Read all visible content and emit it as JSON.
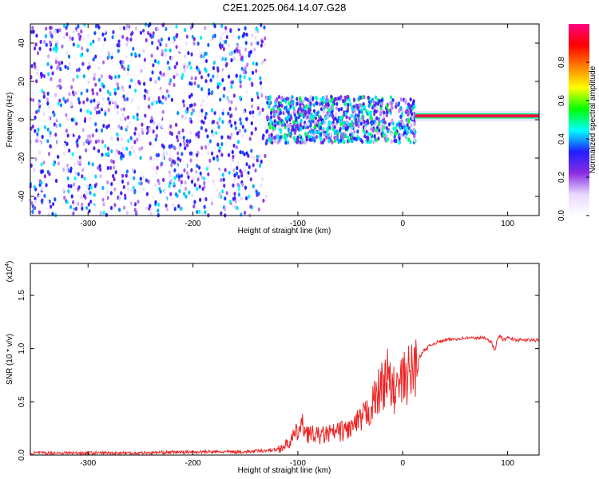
{
  "figure_title": "C2E1.2025.064.14.07.G28",
  "chart_data": [
    {
      "type": "heatmap",
      "xlabel": "Height of straight line (km)",
      "ylabel": "Frequency (Hz)",
      "xlim": [
        -355,
        130
      ],
      "ylim": [
        -50,
        50
      ],
      "xticks": [
        -300,
        -200,
        -100,
        0,
        100
      ],
      "yticks": [
        -40,
        -20,
        0,
        20,
        40
      ],
      "colorbar": {
        "label": "Normalized spectral amplitude",
        "range": [
          0,
          1
        ],
        "ticks": [
          0.0,
          0.2,
          0.4,
          0.6,
          0.8
        ],
        "tick_labels": [
          "0.0",
          "0.2",
          "0.4",
          "0.6",
          "0.8"
        ],
        "colormap": [
          "#ffffff",
          "#e8d8ff",
          "#8a2be2",
          "#1f1fff",
          "#00ffff",
          "#00ff00",
          "#ffff00",
          "#ff8000",
          "#ff0000",
          "#ff0080"
        ]
      },
      "regions": [
        {
          "x_range": [
            -355,
            -130
          ],
          "freq_range": [
            -50,
            50
          ],
          "amplitude": 0.05
        },
        {
          "x_range": [
            -130,
            12
          ],
          "freq_range": [
            -12,
            12
          ],
          "amplitude": 0.25
        },
        {
          "x_range": [
            12,
            130
          ],
          "freq_range": [
            1,
            3
          ],
          "amplitude": 0.95
        }
      ]
    },
    {
      "type": "line",
      "xlabel": "Height of straight line (km)",
      "ylabel": "SNR (10 * v/v)",
      "y_scale_label": "(x10",
      "y_scale_exponent": "4",
      "y_scale_close": ")",
      "xlim": [
        -355,
        130
      ],
      "ylim": [
        0,
        1.8
      ],
      "xticks": [
        -300,
        -200,
        -100,
        0,
        100
      ],
      "yticks": [
        0.0,
        0.5,
        1.0,
        1.5
      ],
      "ytick_labels": [
        "0.0",
        "0.5",
        "1.0",
        "1.5"
      ],
      "series_color": "#ee2222",
      "series": [
        {
          "x": [
            -355,
            -300,
            -250,
            -200,
            -150,
            -120,
            -110,
            -100,
            -95,
            -90,
            -80,
            -70,
            -60,
            -50,
            -40,
            -30,
            -25,
            -20,
            -15,
            -10,
            -5,
            0,
            5,
            10,
            15,
            20,
            25,
            30,
            40,
            60,
            80,
            85,
            88,
            90,
            92,
            94,
            96,
            100,
            110,
            120,
            130
          ],
          "y": [
            0.02,
            0.02,
            0.02,
            0.03,
            0.03,
            0.05,
            0.1,
            0.22,
            0.28,
            0.2,
            0.18,
            0.2,
            0.22,
            0.25,
            0.32,
            0.45,
            0.55,
            0.65,
            0.75,
            0.6,
            0.62,
            0.7,
            0.75,
            0.8,
            0.9,
            0.98,
            1.02,
            1.05,
            1.08,
            1.1,
            1.1,
            1.05,
            0.98,
            1.08,
            1.12,
            1.1,
            1.08,
            1.1,
            1.08,
            1.08,
            1.08
          ]
        }
      ]
    }
  ]
}
